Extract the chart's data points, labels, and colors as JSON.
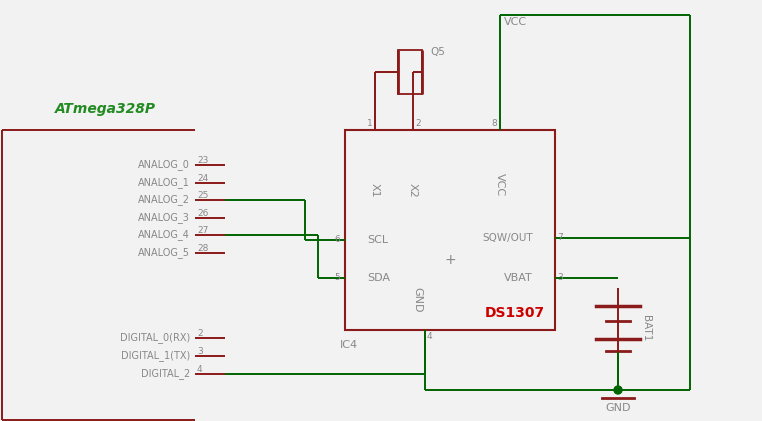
{
  "bg_color": "#f2f2f2",
  "dark_red": "#8B1A1A",
  "green": "#006400",
  "gray": "#888888",
  "red_label": "#CC0000",
  "green_label": "#228B22",
  "fig_w": 7.62,
  "fig_h": 4.21,
  "analog_pins": [
    "ANALOG_0",
    "ANALOG_1",
    "ANALOG_2",
    "ANALOG_3",
    "ANALOG_4",
    "ANALOG_5"
  ],
  "analog_nums": [
    "23",
    "24",
    "25",
    "26",
    "27",
    "28"
  ],
  "digital_pins": [
    "DIGITAL_0(RX)",
    "DIGITAL_1(TX)",
    "DIGITAL_2"
  ],
  "digital_nums": [
    "2",
    "3",
    "4"
  ],
  "atmega_label": "ATmega328P",
  "ic_label": "DS1307",
  "ic_ref": "IC4",
  "crystal_ref": "Q5",
  "bat_ref": "BAT1",
  "vcc_label": "VCC",
  "gnd_label": "GND"
}
